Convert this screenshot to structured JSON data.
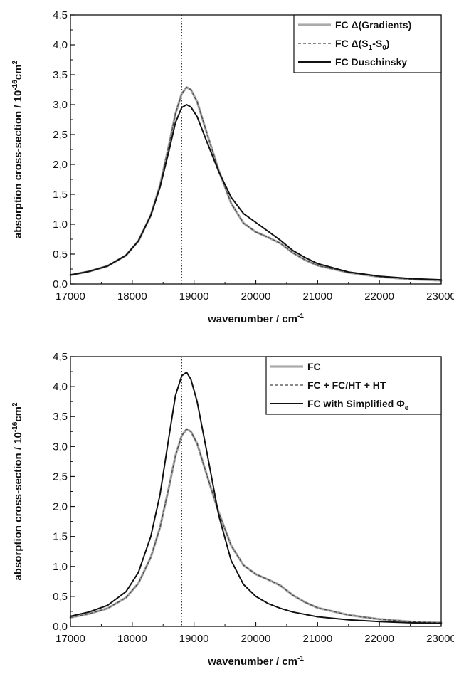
{
  "chart_data": [
    {
      "type": "line",
      "xlabel": "wavenumber / cm",
      "xlabel_sup": "-1",
      "ylabel_main": "absorption cross-section / 10",
      "ylabel_sup1": "-16",
      "ylabel_unit": "cm",
      "ylabel_sup2": "2",
      "xlim": [
        17000,
        23000
      ],
      "ylim": [
        0,
        4.5
      ],
      "xticks": [
        17000,
        18000,
        19000,
        20000,
        21000,
        22000,
        23000
      ],
      "xtick_labels": [
        "17000",
        "18000",
        "19000",
        "20000",
        "21000",
        "22000",
        "23000"
      ],
      "yticks": [
        0,
        0.5,
        1,
        1.5,
        2,
        2.5,
        3,
        3.5,
        4,
        4.5
      ],
      "ytick_labels": [
        "0,0",
        "0,5",
        "1,0",
        "1,5",
        "2,0",
        "2,5",
        "3,0",
        "3,5",
        "4,0",
        "4,5"
      ],
      "grid": false,
      "legend_position": "top-right",
      "vline_x": 18800,
      "series": [
        {
          "name_parts": [
            {
              "t": "FC Δ(Gradients)",
              "sub": false
            }
          ],
          "color": "#aaaaaa",
          "dash": "solid",
          "x": [
            17000,
            17300,
            17600,
            17900,
            18100,
            18300,
            18450,
            18600,
            18700,
            18800,
            18880,
            18950,
            19050,
            19200,
            19400,
            19600,
            19800,
            20000,
            20200,
            20400,
            20600,
            20800,
            21000,
            21500,
            22000,
            22500,
            23000
          ],
          "y": [
            0.15,
            0.21,
            0.3,
            0.48,
            0.72,
            1.15,
            1.65,
            2.35,
            2.85,
            3.18,
            3.29,
            3.25,
            3.05,
            2.55,
            1.9,
            1.35,
            1.02,
            0.87,
            0.78,
            0.68,
            0.52,
            0.4,
            0.31,
            0.19,
            0.12,
            0.08,
            0.06
          ]
        },
        {
          "name_parts": [
            {
              "t": "FC Δ(S",
              "sub": false
            },
            {
              "t": "1",
              "sub": true
            },
            {
              "t": "-S",
              "sub": false
            },
            {
              "t": "0",
              "sub": true
            },
            {
              "t": ")",
              "sub": false
            }
          ],
          "color": "#444444",
          "dash": "dashed",
          "x": [
            17000,
            17300,
            17600,
            17900,
            18100,
            18300,
            18450,
            18600,
            18700,
            18800,
            18880,
            18950,
            19050,
            19200,
            19400,
            19600,
            19800,
            20000,
            20200,
            20400,
            20600,
            20800,
            21000,
            21500,
            22000,
            22500,
            23000
          ],
          "y": [
            0.15,
            0.21,
            0.3,
            0.48,
            0.72,
            1.15,
            1.65,
            2.35,
            2.85,
            3.18,
            3.29,
            3.25,
            3.05,
            2.55,
            1.9,
            1.35,
            1.02,
            0.87,
            0.78,
            0.68,
            0.52,
            0.4,
            0.31,
            0.19,
            0.12,
            0.08,
            0.06
          ]
        },
        {
          "name_parts": [
            {
              "t": "FC Duschinsky",
              "sub": false
            }
          ],
          "color": "#111111",
          "dash": "solid",
          "x": [
            17000,
            17300,
            17600,
            17900,
            18100,
            18300,
            18450,
            18600,
            18700,
            18800,
            18880,
            18950,
            19050,
            19200,
            19400,
            19600,
            19800,
            20000,
            20200,
            20400,
            20600,
            20800,
            21000,
            21500,
            22000,
            22500,
            23000
          ],
          "y": [
            0.15,
            0.21,
            0.3,
            0.48,
            0.72,
            1.15,
            1.62,
            2.25,
            2.7,
            2.95,
            3.0,
            2.96,
            2.8,
            2.4,
            1.88,
            1.45,
            1.18,
            1.03,
            0.88,
            0.73,
            0.56,
            0.44,
            0.34,
            0.2,
            0.13,
            0.09,
            0.07
          ]
        }
      ]
    },
    {
      "type": "line",
      "xlabel": "wavenumber / cm",
      "xlabel_sup": "-1",
      "ylabel_main": "absorption cross-section / 10",
      "ylabel_sup1": "-16",
      "ylabel_unit": "cm",
      "ylabel_sup2": "2",
      "xlim": [
        17000,
        23000
      ],
      "ylim": [
        0,
        4.5
      ],
      "xticks": [
        17000,
        18000,
        19000,
        20000,
        21000,
        22000,
        23000
      ],
      "xtick_labels": [
        "17000",
        "18000",
        "19000",
        "20000",
        "21000",
        "22000",
        "23000"
      ],
      "yticks": [
        0,
        0.5,
        1,
        1.5,
        2,
        2.5,
        3,
        3.5,
        4,
        4.5
      ],
      "ytick_labels": [
        "0,0",
        "0,5",
        "1,0",
        "1,5",
        "2,0",
        "2,5",
        "3,0",
        "3,5",
        "4,0",
        "4,5"
      ],
      "grid": false,
      "legend_position": "top-right",
      "vline_x": 18800,
      "series": [
        {
          "name_parts": [
            {
              "t": "FC",
              "sub": false
            }
          ],
          "color": "#aaaaaa",
          "dash": "solid",
          "x": [
            17000,
            17300,
            17600,
            17900,
            18100,
            18300,
            18450,
            18600,
            18700,
            18800,
            18880,
            18950,
            19050,
            19200,
            19400,
            19600,
            19800,
            20000,
            20200,
            20400,
            20600,
            20800,
            21000,
            21500,
            22000,
            22500,
            23000
          ],
          "y": [
            0.15,
            0.21,
            0.3,
            0.48,
            0.72,
            1.15,
            1.65,
            2.35,
            2.85,
            3.18,
            3.29,
            3.25,
            3.05,
            2.55,
            1.9,
            1.35,
            1.02,
            0.87,
            0.78,
            0.68,
            0.52,
            0.4,
            0.31,
            0.19,
            0.12,
            0.08,
            0.06
          ]
        },
        {
          "name_parts": [
            {
              "t": "FC + FC/HT + HT",
              "sub": false
            }
          ],
          "color": "#444444",
          "dash": "dashed",
          "x": [
            17000,
            17300,
            17600,
            17900,
            18100,
            18300,
            18450,
            18600,
            18700,
            18800,
            18880,
            18950,
            19050,
            19200,
            19400,
            19600,
            19800,
            20000,
            20200,
            20400,
            20600,
            20800,
            21000,
            21500,
            22000,
            22500,
            23000
          ],
          "y": [
            0.15,
            0.21,
            0.3,
            0.48,
            0.72,
            1.15,
            1.65,
            2.35,
            2.85,
            3.18,
            3.29,
            3.25,
            3.05,
            2.55,
            1.9,
            1.35,
            1.02,
            0.87,
            0.78,
            0.68,
            0.52,
            0.4,
            0.31,
            0.19,
            0.12,
            0.08,
            0.06
          ]
        },
        {
          "name_parts": [
            {
              "t": "FC with Simplified Φ",
              "sub": false
            },
            {
              "t": "e",
              "sub": true
            }
          ],
          "color": "#111111",
          "dash": "solid",
          "x": [
            17000,
            17300,
            17600,
            17900,
            18100,
            18300,
            18450,
            18600,
            18700,
            18800,
            18880,
            18950,
            19050,
            19200,
            19400,
            19600,
            19800,
            20000,
            20200,
            20400,
            20600,
            20800,
            21000,
            21500,
            22000,
            22500,
            23000
          ],
          "y": [
            0.17,
            0.24,
            0.35,
            0.58,
            0.9,
            1.5,
            2.2,
            3.2,
            3.85,
            4.18,
            4.24,
            4.12,
            3.75,
            2.95,
            1.85,
            1.1,
            0.7,
            0.5,
            0.38,
            0.3,
            0.24,
            0.2,
            0.16,
            0.11,
            0.08,
            0.06,
            0.05
          ]
        }
      ]
    }
  ]
}
